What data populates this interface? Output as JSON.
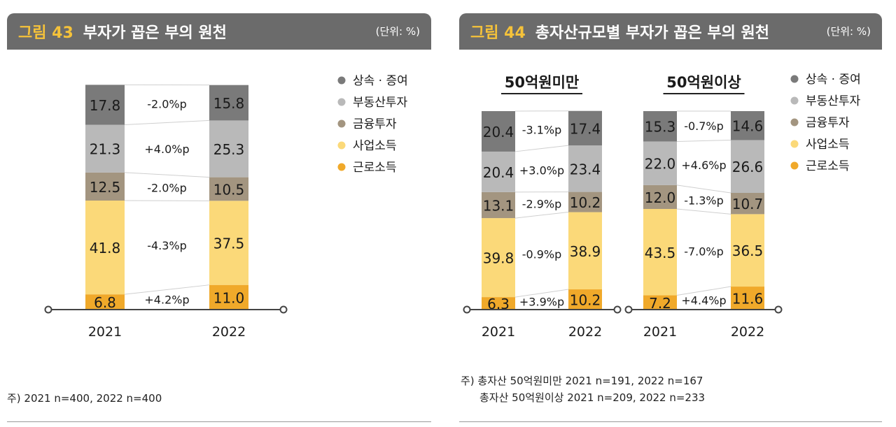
{
  "colors": {
    "상속·증여": "#7a7a7a",
    "부동산투자": "#b9b9b9",
    "금융투자": "#a39580",
    "사업소득": "#fbd979",
    "근로소득": "#f0a92a"
  },
  "legend_items": [
    "상속 · 증여",
    "부동산투자",
    "금융투자",
    "사업소득",
    "근로소득"
  ],
  "fig43": {
    "number": "그림 43",
    "title": "부자가 꼽은 부의 원천",
    "unit": "(단위: %)",
    "note": "주) 2021 n=400, 2022 n=400"
  },
  "fig44": {
    "number": "그림 44",
    "title": "총자산규모별 부자가 꼽은 부의 원천",
    "unit": "(단위: %)",
    "note_line1": "주) 총자산 50억원미만 2021 n=191, 2022 n=167",
    "note_line2": "총자산 50억원이상 2021 n=209, 2022 n=233"
  },
  "chart_data": [
    {
      "type": "bar",
      "stacked": true,
      "title": "",
      "categories": [
        "2021",
        "2022"
      ],
      "series": [
        {
          "name": "근로소득",
          "values": [
            6.8,
            11.0
          ],
          "labels": [
            "6.8",
            "11.0"
          ]
        },
        {
          "name": "사업소득",
          "values": [
            41.8,
            37.5
          ],
          "labels": [
            "41.8",
            "37.5"
          ]
        },
        {
          "name": "금융투자",
          "values": [
            12.5,
            10.5
          ],
          "labels": [
            "12.5",
            "10.5"
          ]
        },
        {
          "name": "부동산투자",
          "values": [
            21.3,
            25.3
          ],
          "labels": [
            "21.3",
            "25.3"
          ]
        },
        {
          "name": "상속·증여",
          "values": [
            17.8,
            15.8
          ],
          "labels": [
            "17.8",
            "15.8"
          ]
        }
      ],
      "changes": [
        "+4.2%p",
        "-4.3%p",
        "-2.0%p",
        "+4.0%p",
        "-2.0%p"
      ],
      "legend": "right"
    },
    {
      "type": "bar",
      "stacked": true,
      "title": "50억원미만",
      "categories": [
        "2021",
        "2022"
      ],
      "series": [
        {
          "name": "근로소득",
          "values": [
            6.3,
            10.2
          ],
          "labels": [
            "6.3",
            "10.2"
          ]
        },
        {
          "name": "사업소득",
          "values": [
            39.8,
            38.9
          ],
          "labels": [
            "39.8",
            "38.9"
          ]
        },
        {
          "name": "금융투자",
          "values": [
            13.1,
            10.2
          ],
          "labels": [
            "13.1",
            "10.2"
          ]
        },
        {
          "name": "부동산투자",
          "values": [
            20.4,
            23.4
          ],
          "labels": [
            "20.4",
            "23.4"
          ]
        },
        {
          "name": "상속·증여",
          "values": [
            20.4,
            17.4
          ],
          "labels": [
            "20.4",
            "17.4"
          ]
        }
      ],
      "changes": [
        "+3.9%p",
        "-0.9%p",
        "-2.9%p",
        "+3.0%p",
        "-3.1%p"
      ]
    },
    {
      "type": "bar",
      "stacked": true,
      "title": "50억원이상",
      "categories": [
        "2021",
        "2022"
      ],
      "series": [
        {
          "name": "근로소득",
          "values": [
            7.2,
            11.6
          ],
          "labels": [
            "7.2",
            "11.6"
          ]
        },
        {
          "name": "사업소득",
          "values": [
            43.5,
            36.5
          ],
          "labels": [
            "43.5",
            "36.5"
          ]
        },
        {
          "name": "금융투자",
          "values": [
            12.0,
            10.7
          ],
          "labels": [
            "12.0",
            "10.7"
          ]
        },
        {
          "name": "부동산투자",
          "values": [
            22.0,
            26.6
          ],
          "labels": [
            "22.0",
            "26.6"
          ]
        },
        {
          "name": "상속·증여",
          "values": [
            15.3,
            14.6
          ],
          "labels": [
            "15.3",
            "14.6"
          ]
        }
      ],
      "changes": [
        "+4.4%p",
        "-7.0%p",
        "-1.3%p",
        "+4.6%p",
        "-0.7%p"
      ],
      "legend": "right"
    }
  ]
}
